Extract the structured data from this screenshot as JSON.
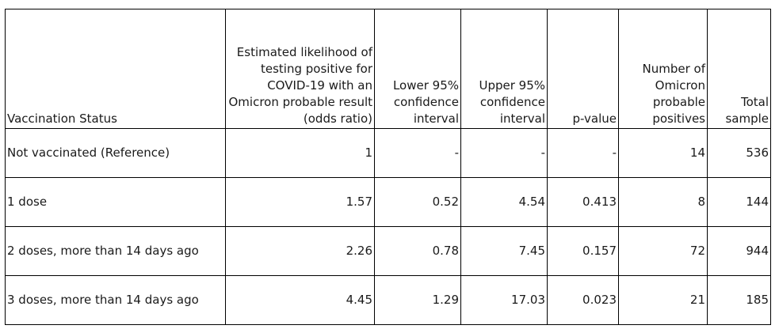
{
  "table": {
    "headers": [
      {
        "key": "vaccination_status",
        "lines": [
          "Vaccination Status"
        ]
      },
      {
        "key": "odds_ratio",
        "lines": [
          "Estimated likelihood of",
          "testing positive for",
          "COVID-19 with an",
          "Omicron probable result",
          "(odds ratio)"
        ]
      },
      {
        "key": "lower_ci",
        "lines": [
          "Lower 95%",
          "confidence",
          "interval"
        ]
      },
      {
        "key": "upper_ci",
        "lines": [
          "Upper 95%",
          "confidence",
          "interval"
        ]
      },
      {
        "key": "p_value",
        "lines": [
          "p-value"
        ]
      },
      {
        "key": "omicron_positives",
        "lines": [
          "Number of",
          "Omicron",
          "probable",
          "positives"
        ]
      },
      {
        "key": "total_sample",
        "lines": [
          "Total",
          "sample"
        ]
      }
    ],
    "rows": [
      {
        "status": "Not vaccinated (Reference)",
        "odds_ratio": "1",
        "lower_ci": "-",
        "upper_ci": "-",
        "p_value": "-",
        "omicron_positives": "14",
        "total_sample": "536"
      },
      {
        "status": "1 dose",
        "odds_ratio": "1.57",
        "lower_ci": "0.52",
        "upper_ci": "4.54",
        "p_value": "0.413",
        "omicron_positives": "8",
        "total_sample": "144"
      },
      {
        "status": "2 doses, more than 14 days ago",
        "odds_ratio": "2.26",
        "lower_ci": "0.78",
        "upper_ci": "7.45",
        "p_value": "0.157",
        "omicron_positives": "72",
        "total_sample": "944"
      },
      {
        "status": "3 doses, more than 14 days ago",
        "odds_ratio": "4.45",
        "lower_ci": "1.29",
        "upper_ci": "17.03",
        "p_value": "0.023",
        "omicron_positives": "21",
        "total_sample": "185"
      }
    ]
  }
}
